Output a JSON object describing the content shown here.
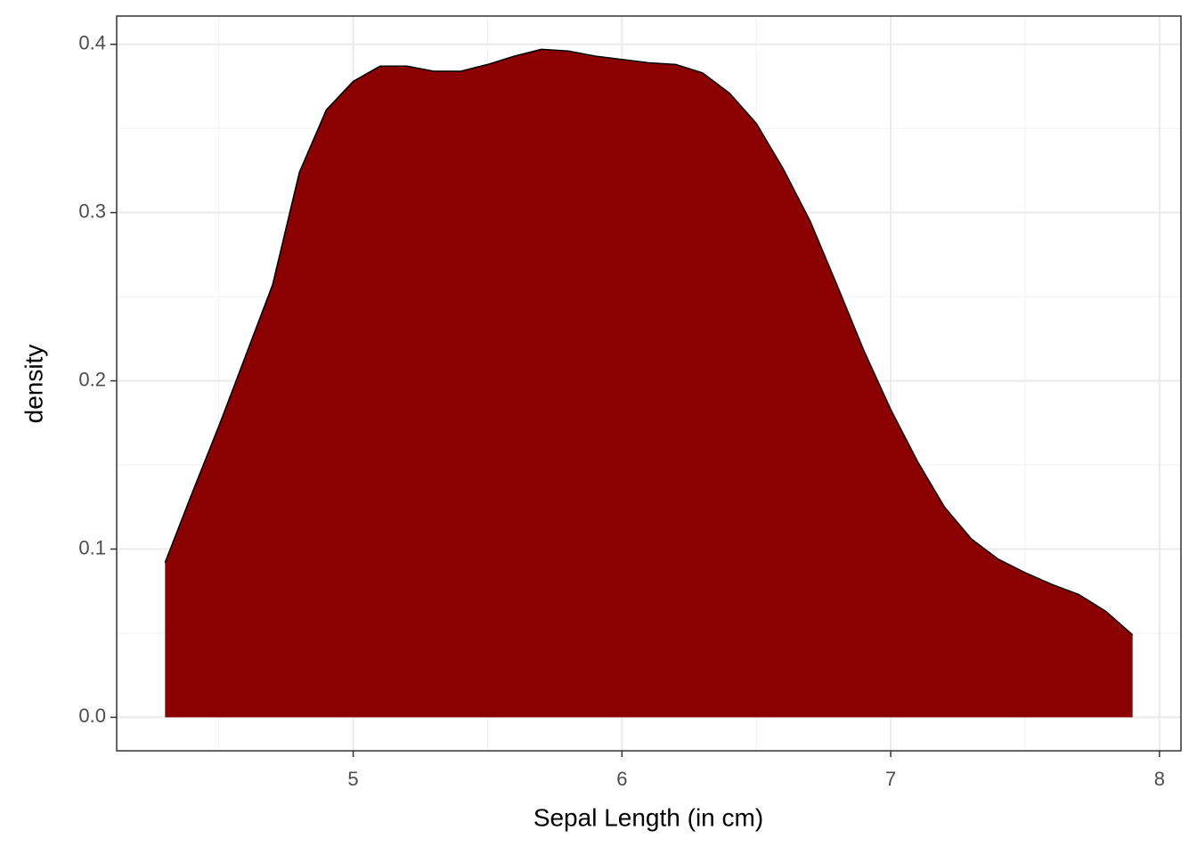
{
  "chart_data": {
    "type": "area",
    "x_label": "Sepal Length (in cm)",
    "y_label": "density",
    "x": [
      4.3,
      4.4,
      4.5,
      4.6,
      4.7,
      4.8,
      4.9,
      5.0,
      5.1,
      5.2,
      5.3,
      5.4,
      5.5,
      5.6,
      5.7,
      5.8,
      5.9,
      6.0,
      6.1,
      6.2,
      6.3,
      6.4,
      6.5,
      6.6,
      6.7,
      6.8,
      6.9,
      7.0,
      7.1,
      7.2,
      7.3,
      7.4,
      7.5,
      7.6,
      7.7,
      7.8,
      7.9
    ],
    "values": [
      0.092,
      0.133,
      0.173,
      0.215,
      0.257,
      0.324,
      0.361,
      0.378,
      0.387,
      0.387,
      0.384,
      0.384,
      0.388,
      0.393,
      0.397,
      0.396,
      0.393,
      0.391,
      0.389,
      0.388,
      0.383,
      0.371,
      0.353,
      0.326,
      0.295,
      0.257,
      0.218,
      0.183,
      0.152,
      0.125,
      0.106,
      0.094,
      0.086,
      0.079,
      0.073,
      0.063,
      0.049
    ],
    "color": "#8b0000",
    "xlim": [
      4.12,
      8.08
    ],
    "xticks": [
      5,
      6,
      7,
      8
    ],
    "ylim": [
      -0.0199,
      0.4168
    ],
    "yticks": [
      {
        "value": 0,
        "label": "0.0"
      },
      0.1,
      0.2,
      0.3,
      0.4
    ],
    "grid": true
  }
}
